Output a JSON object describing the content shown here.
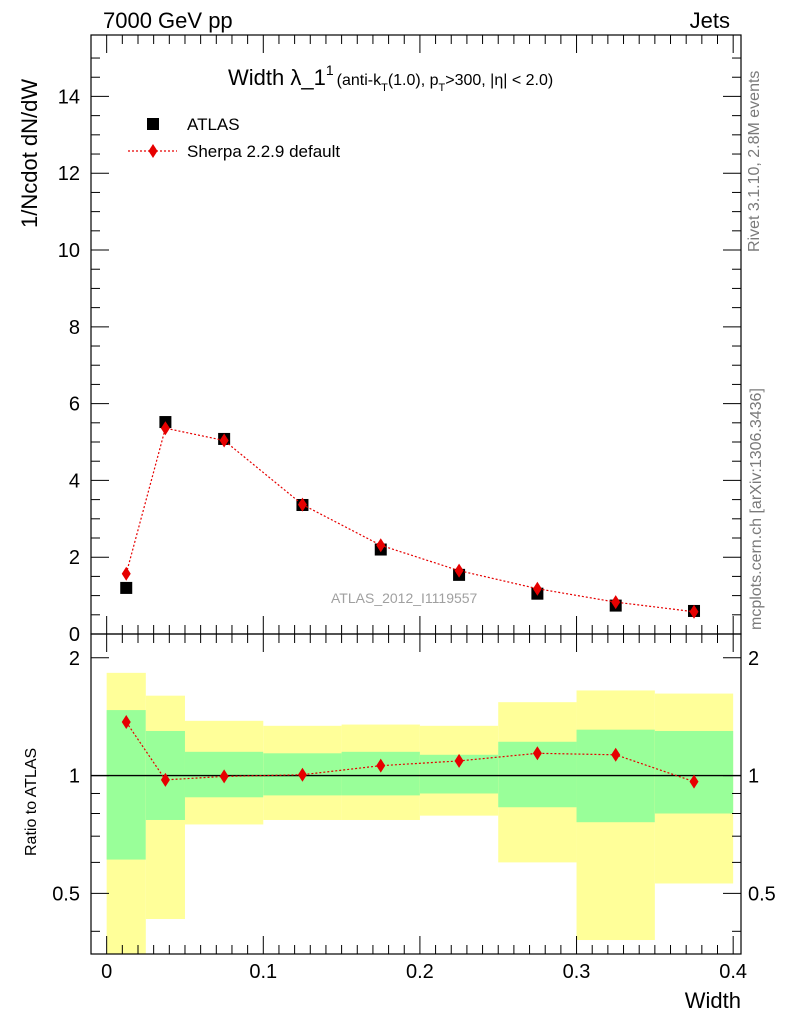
{
  "header": {
    "left": "7000 GeV pp",
    "right": "Jets"
  },
  "side_labels": {
    "rivet": "Rivet 3.1.10,  2.8M events",
    "mcplots": "mcplots.cern.ch [arXiv:1306.3436]"
  },
  "chart_data": {
    "type": "scatter",
    "title": {
      "main": "Width λ_1",
      "superscript": "1",
      "subtitle": "(anti-k",
      "sub_T": "T",
      "subtitle_2": "(1.0), p",
      "sub_T2": "T",
      "subtitle_3": ">300, |η| < 2.0)"
    },
    "watermark": "ATLAS_2012_I1119557",
    "xlabel": "Width",
    "ylabel": "1/Ncdot dN/dW",
    "ratio_ylabel": "Ratio to ATLAS",
    "xlim": [
      -0.01,
      0.405
    ],
    "ylim": [
      0,
      15.6
    ],
    "ratio_ylim": [
      0.35,
      2.3
    ],
    "x_ticks": [
      "0",
      "0.1",
      "0.2",
      "0.3",
      "0.4"
    ],
    "y_ticks": [
      "0",
      "2",
      "4",
      "6",
      "8",
      "10",
      "12",
      "14"
    ],
    "ratio_ticks": [
      "0.5",
      "1",
      "2"
    ],
    "legend": {
      "placement": "top-left"
    },
    "bins": [
      [
        0.0,
        0.025
      ],
      [
        0.025,
        0.05
      ],
      [
        0.05,
        0.1
      ],
      [
        0.1,
        0.15
      ],
      [
        0.15,
        0.2
      ],
      [
        0.2,
        0.25
      ],
      [
        0.25,
        0.3
      ],
      [
        0.3,
        0.35
      ],
      [
        0.35,
        0.4
      ]
    ],
    "series": [
      {
        "name": "ATLAS",
        "color": "#000000",
        "marker": "square",
        "x": [
          0.0125,
          0.0375,
          0.075,
          0.125,
          0.175,
          0.225,
          0.275,
          0.325,
          0.375
        ],
        "y": [
          1.2,
          5.52,
          5.08,
          3.36,
          2.2,
          1.54,
          1.05,
          0.74,
          0.6
        ]
      },
      {
        "name": "Sherpa 2.2.9 default",
        "color": "#e60000",
        "marker": "diamond",
        "line": "dotted",
        "x": [
          0.0125,
          0.0375,
          0.075,
          0.125,
          0.175,
          0.225,
          0.275,
          0.325,
          0.375
        ],
        "y": [
          1.57,
          5.36,
          5.04,
          3.37,
          2.31,
          1.65,
          1.18,
          0.83,
          0.58
        ]
      }
    ],
    "ratio": {
      "x": [
        0.0125,
        0.0375,
        0.075,
        0.125,
        0.175,
        0.225,
        0.275,
        0.325,
        0.375
      ],
      "y": [
        1.37,
        0.975,
        0.995,
        1.005,
        1.06,
        1.09,
        1.14,
        1.13,
        0.965
      ],
      "band_inner": [
        [
          0.61,
          1.47
        ],
        [
          0.77,
          1.3
        ],
        [
          0.88,
          1.15
        ],
        [
          0.89,
          1.14
        ],
        [
          0.89,
          1.15
        ],
        [
          0.9,
          1.13
        ],
        [
          0.83,
          1.22
        ],
        [
          0.76,
          1.31
        ],
        [
          0.8,
          1.3
        ]
      ],
      "band_outer": [
        [
          0.3,
          1.83
        ],
        [
          0.43,
          1.6
        ],
        [
          0.75,
          1.38
        ],
        [
          0.77,
          1.34
        ],
        [
          0.77,
          1.35
        ],
        [
          0.79,
          1.34
        ],
        [
          0.6,
          1.54
        ],
        [
          0.38,
          1.65
        ],
        [
          0.53,
          1.62
        ]
      ],
      "inner_color": "#99ff99",
      "outer_color": "#ffff99"
    }
  }
}
